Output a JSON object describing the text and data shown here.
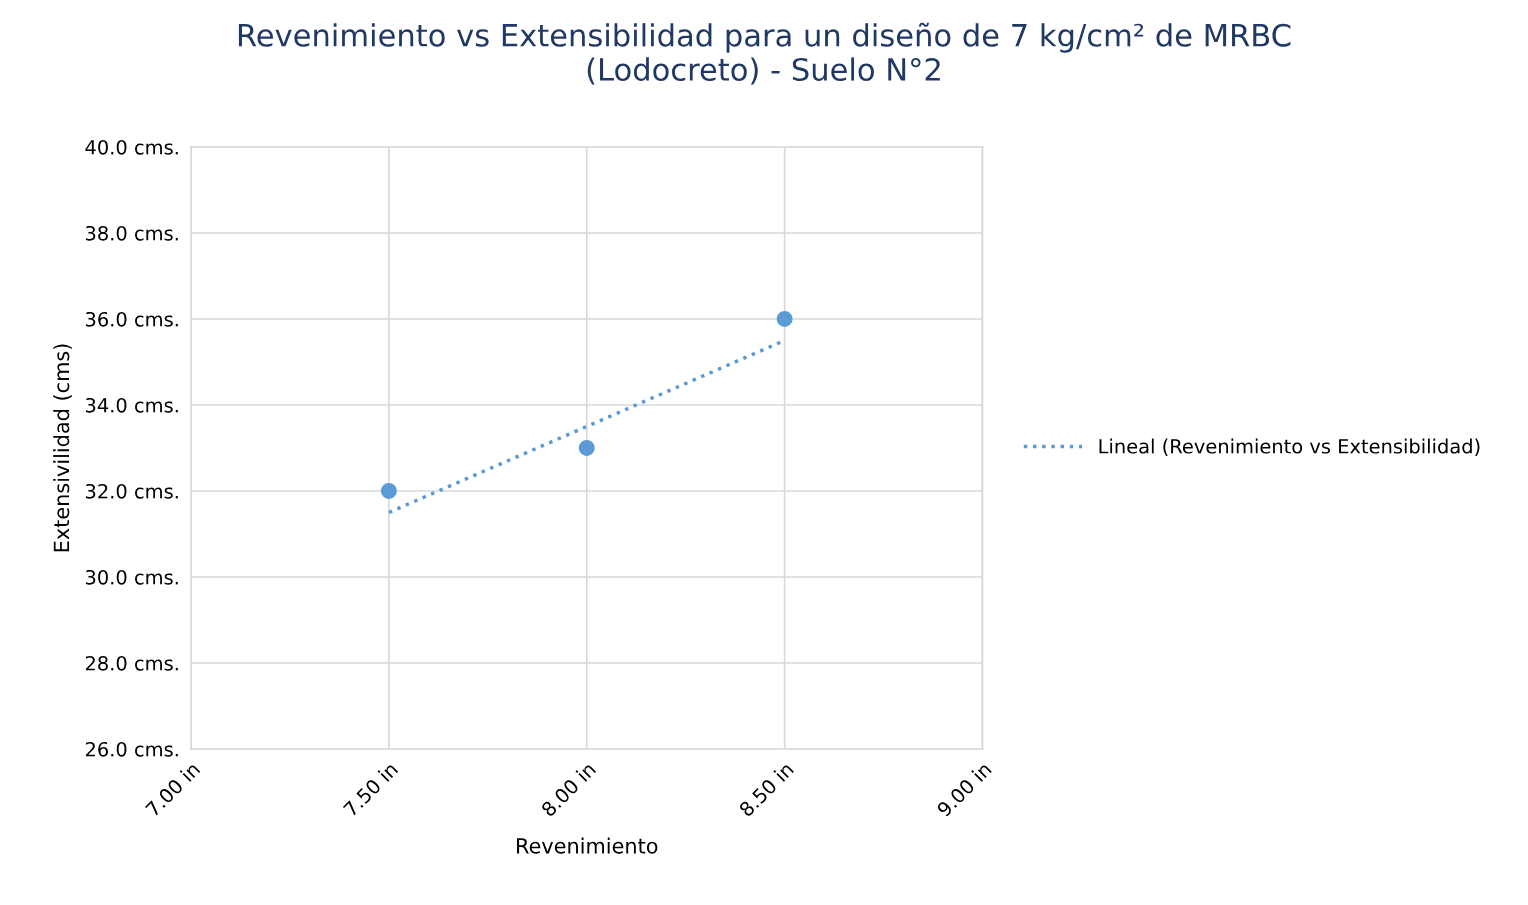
{
  "chart_data": {
    "type": "scatter",
    "title": "Revenimiento vs Extensibilidad para un diseño de 7 kg/cm² de MRBC\n(Lodocreto) - Suelo N°2",
    "xlabel": "Revenimiento",
    "ylabel": "Extensivilidad (cms)",
    "series": [
      {
        "color": "#5b9bd5",
        "marker": "circle",
        "x": [
          7.5,
          8.0,
          8.5
        ],
        "values": [
          32,
          33,
          36
        ]
      },
      {
        "type": "line",
        "name": "Lineal (Revenimiento vs Extensibilidad)",
        "color": "#5b9bd5",
        "line_style": "dotted",
        "marker": "none",
        "x": [
          7.5,
          8.5
        ],
        "values": [
          31.5,
          35.5
        ]
      }
    ],
    "xlim": [
      7.0,
      9.0
    ],
    "xticks": [
      {
        "value": 7.0,
        "label": "7.00 in"
      },
      {
        "value": 7.5,
        "label": "7.50 in"
      },
      {
        "value": 8.0,
        "label": "8.00 in"
      },
      {
        "value": 8.5,
        "label": "8.50 in"
      },
      {
        "value": 9.0,
        "label": "9.00 in"
      }
    ],
    "ylim": [
      26,
      40
    ],
    "yticks": [
      {
        "value": 26,
        "label": "26.0 cms."
      },
      {
        "value": 28,
        "label": "28.0 cms."
      },
      {
        "value": 30,
        "label": "30.0 cms."
      },
      {
        "value": 32,
        "label": "32.0 cms."
      },
      {
        "value": 34,
        "label": "34.0 cms."
      },
      {
        "value": 36,
        "label": "36.0 cms."
      },
      {
        "value": 38,
        "label": "38.0 cms."
      },
      {
        "value": 40,
        "label": "40.0 cms."
      }
    ],
    "grid": true,
    "legend": "right"
  }
}
